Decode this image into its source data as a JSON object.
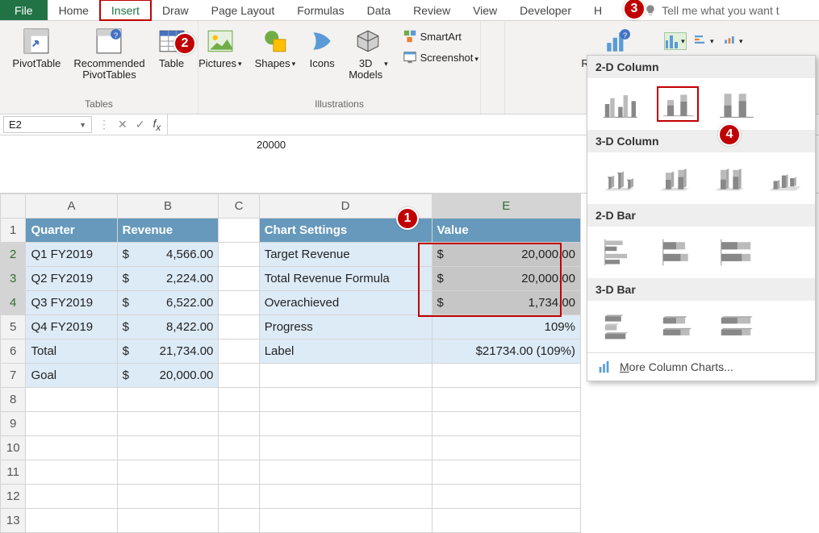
{
  "ribbon_tabs": {
    "file": "File",
    "home": "Home",
    "insert": "Insert",
    "draw": "Draw",
    "page_layout": "Page Layout",
    "formulas": "Formulas",
    "data": "Data",
    "review": "Review",
    "view": "View",
    "developer": "Developer",
    "help_cut": "H",
    "tell_me": "Tell me what you want t"
  },
  "ribbon": {
    "pivottable": "PivotTable",
    "rec_pivot": "Recommended\nPivotTables",
    "table": "Table",
    "group_tables": "Tables",
    "pictures": "Pictures",
    "shapes": "Shapes",
    "icons": "Icons",
    "models": "3D\nModels",
    "group_illus": "Illustrations",
    "smartart": "SmartArt",
    "screenshot": "Screenshot",
    "rec_charts": "Recommended\nCharts"
  },
  "steps": {
    "s1": "1",
    "s2": "2",
    "s3": "3",
    "s4": "4"
  },
  "namebox": "E2",
  "formula": "20000",
  "columns": [
    "A",
    "B",
    "C",
    "D",
    "E"
  ],
  "rows": [
    "1",
    "2",
    "3",
    "4",
    "5",
    "6",
    "7",
    "8",
    "9",
    "10",
    "11",
    "12",
    "13"
  ],
  "tableA": {
    "hdr_quarter": "Quarter",
    "hdr_revenue": "Revenue",
    "r": [
      {
        "q": "Q1 FY2019",
        "v": "4,566.00"
      },
      {
        "q": "Q2 FY2019",
        "v": "2,224.00"
      },
      {
        "q": "Q3 FY2019",
        "v": "6,522.00"
      },
      {
        "q": "Q4 FY2019",
        "v": "8,422.00"
      },
      {
        "q": "Total",
        "v": "21,734.00"
      },
      {
        "q": "Goal",
        "v": "20,000.00"
      }
    ]
  },
  "tableD": {
    "hdr_settings": "Chart Settings",
    "hdr_value": "Value",
    "r": [
      {
        "l": "Target Revenue",
        "v": "20,000.00",
        "money": true
      },
      {
        "l": "Total Revenue Formula",
        "v": "20,000.00",
        "money": true
      },
      {
        "l": "Overachieved",
        "v": "1,734.00",
        "money": true
      },
      {
        "l": "Progress",
        "v": "109%",
        "money": false
      },
      {
        "l": "Label",
        "v": "$21734.00 (109%)",
        "money": false
      }
    ]
  },
  "dropdown": {
    "s2d_col": "2-D Column",
    "s3d_col": "3-D Column",
    "s2d_bar": "2-D Bar",
    "s3d_bar": "3-D Bar",
    "more": "More Column Charts..."
  },
  "colors": {
    "file_bg": "#217346",
    "red": "#c00000",
    "tbl_hdr": "#6699bb",
    "tbl_blue": "#ddebf7"
  }
}
